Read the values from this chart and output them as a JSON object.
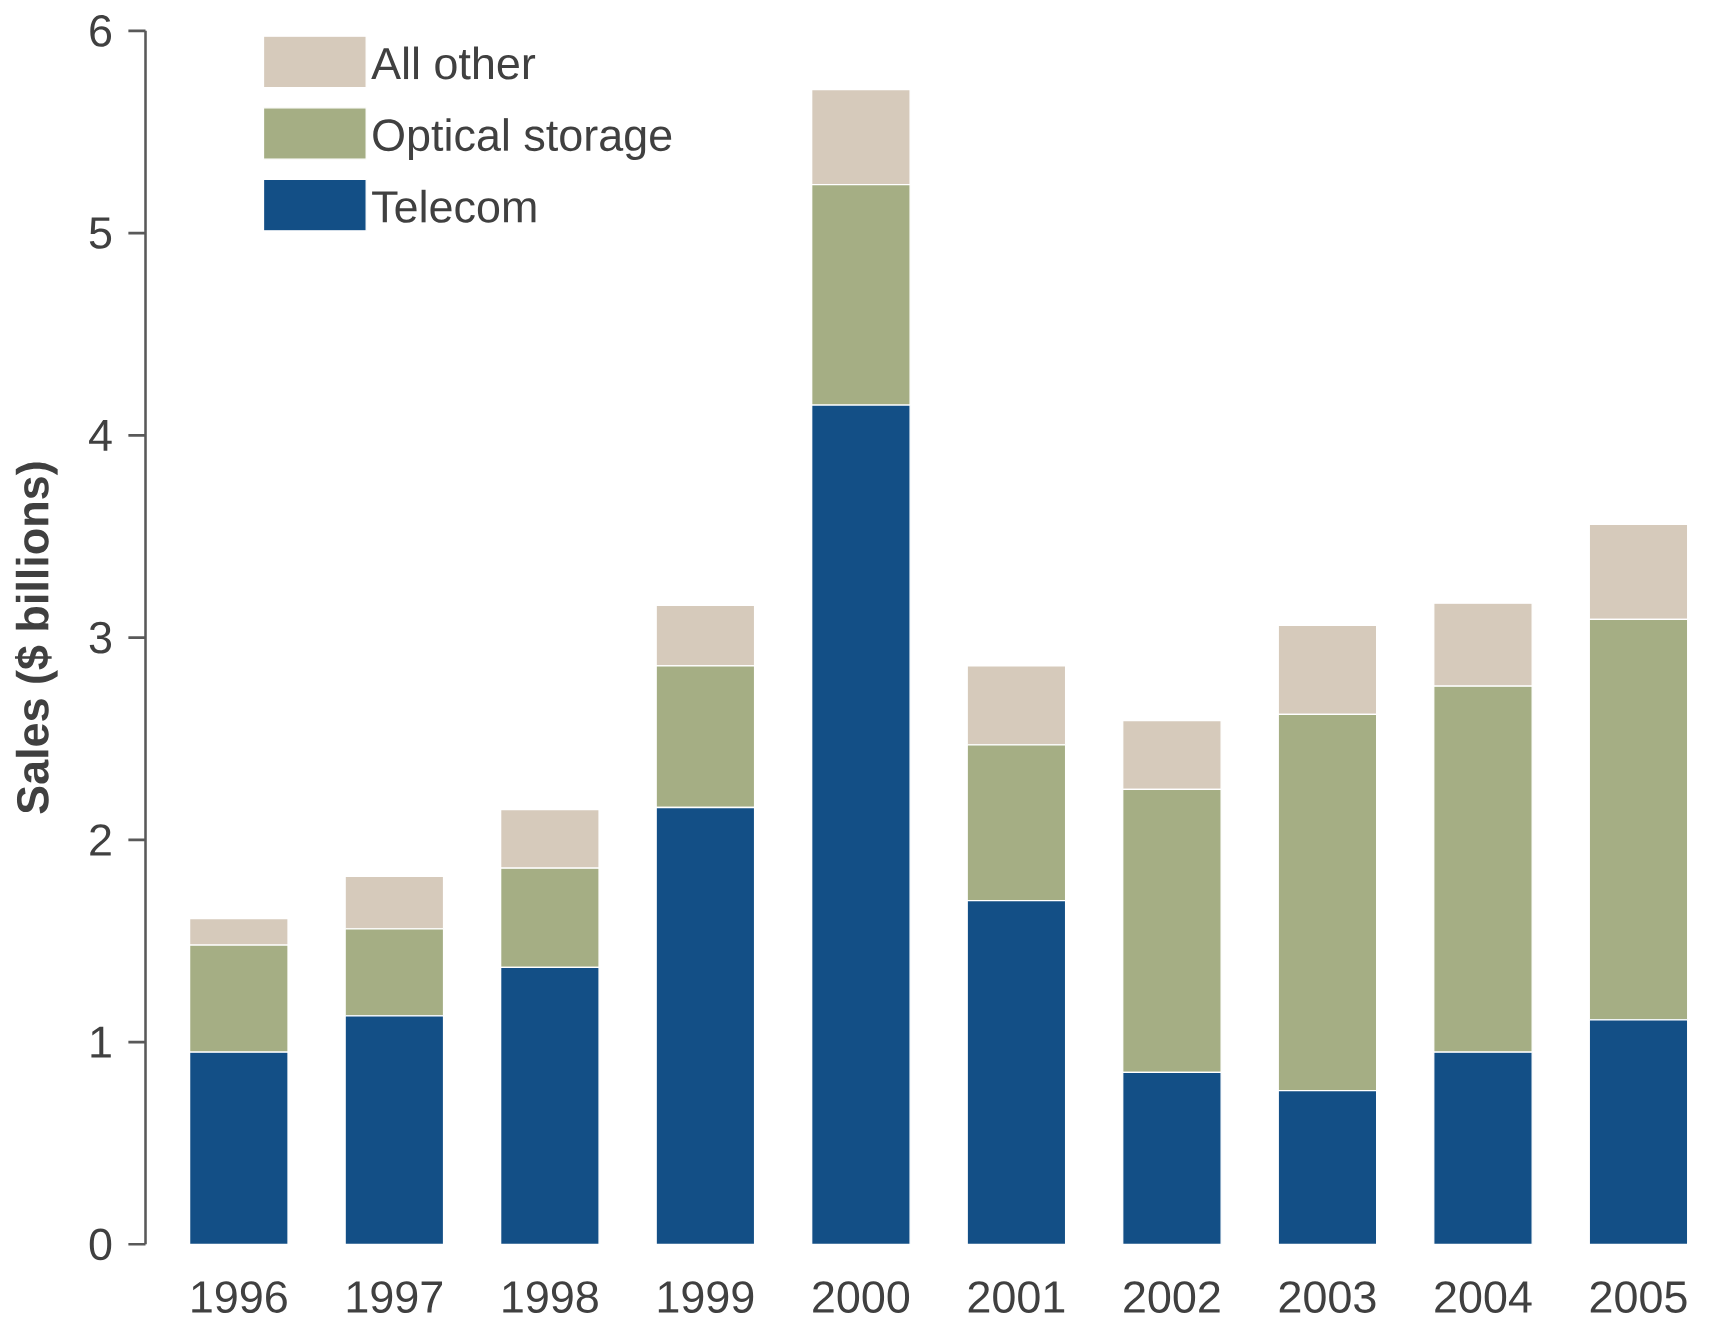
{
  "chart_data": {
    "type": "bar",
    "stacked": true,
    "ylabel": "Sales ($ billions)",
    "categories": [
      "1996",
      "1997",
      "1998",
      "1999",
      "2000",
      "2001",
      "2002",
      "2003",
      "2004",
      "2005"
    ],
    "series": [
      {
        "name": "Telecom",
        "color": "#134f86",
        "values": [
          0.95,
          1.13,
          1.37,
          2.16,
          4.15,
          1.7,
          0.85,
          0.76,
          0.95,
          1.11
        ]
      },
      {
        "name": "Optical storage",
        "color": "#a5ae84",
        "values": [
          0.53,
          0.43,
          0.49,
          0.7,
          1.09,
          0.77,
          1.4,
          1.86,
          1.81,
          1.98
        ]
      },
      {
        "name": "All other",
        "color": "#d6cabb",
        "values": [
          0.13,
          0.26,
          0.29,
          0.3,
          0.47,
          0.39,
          0.34,
          0.44,
          0.41,
          0.47
        ]
      }
    ],
    "ylim": [
      0,
      6
    ],
    "yticks": [
      0,
      1,
      2,
      3,
      4,
      5,
      6
    ],
    "legend": "top left",
    "grid": false
  }
}
